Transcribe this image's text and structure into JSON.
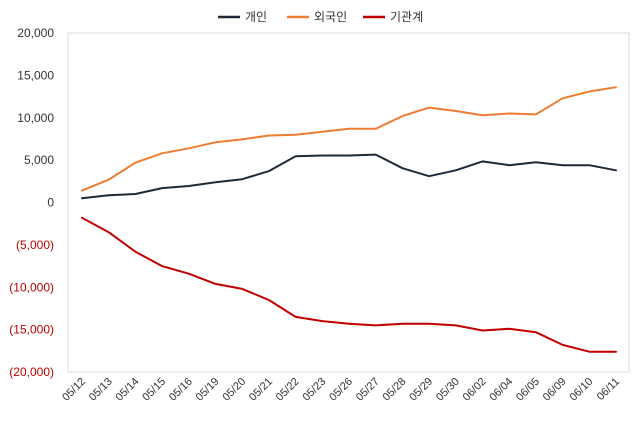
{
  "chart_data": {
    "type": "line",
    "title": "",
    "xlabel": "",
    "ylabel": "",
    "ylim": [
      -20000,
      20000
    ],
    "yticks": [
      20000,
      15000,
      10000,
      5000,
      0,
      -5000,
      -10000,
      -15000,
      -20000
    ],
    "ytick_labels": [
      "20,000",
      "15,000",
      "10,000",
      "5,000",
      "0",
      "(5,000)",
      "(10,000)",
      "(15,000)",
      "(20,000)"
    ],
    "categories": [
      "05/12",
      "05/13",
      "05/14",
      "05/15",
      "05/16",
      "05/19",
      "05/20",
      "05/21",
      "05/22",
      "05/23",
      "05/26",
      "05/27",
      "05/28",
      "05/29",
      "05/30",
      "06/02",
      "06/04",
      "06/05",
      "06/09",
      "06/10",
      "06/11"
    ],
    "legend_position": "top-center",
    "series": [
      {
        "name": "개인",
        "color": "#1f2a38",
        "values": [
          500,
          850,
          1000,
          1700,
          1950,
          2400,
          2750,
          3700,
          5450,
          5550,
          5550,
          5650,
          4050,
          3100,
          3800,
          4850,
          4400,
          4750,
          4400,
          4400,
          3800
        ]
      },
      {
        "name": "외국인",
        "color": "#ed7d31",
        "values": [
          1400,
          2700,
          4700,
          5800,
          6400,
          7100,
          7450,
          7900,
          8000,
          8350,
          8700,
          8700,
          10200,
          11200,
          10800,
          10300,
          10500,
          10400,
          12300,
          13100,
          13600
        ]
      },
      {
        "name": "기관계",
        "color": "#c00000",
        "values": [
          -1800,
          -3500,
          -5800,
          -7500,
          -8400,
          -9600,
          -10200,
          -11500,
          -13500,
          -14000,
          -14300,
          -14500,
          -14300,
          -14300,
          -14500,
          -15100,
          -14900,
          -15300,
          -16800,
          -17600,
          -17600
        ]
      }
    ]
  }
}
